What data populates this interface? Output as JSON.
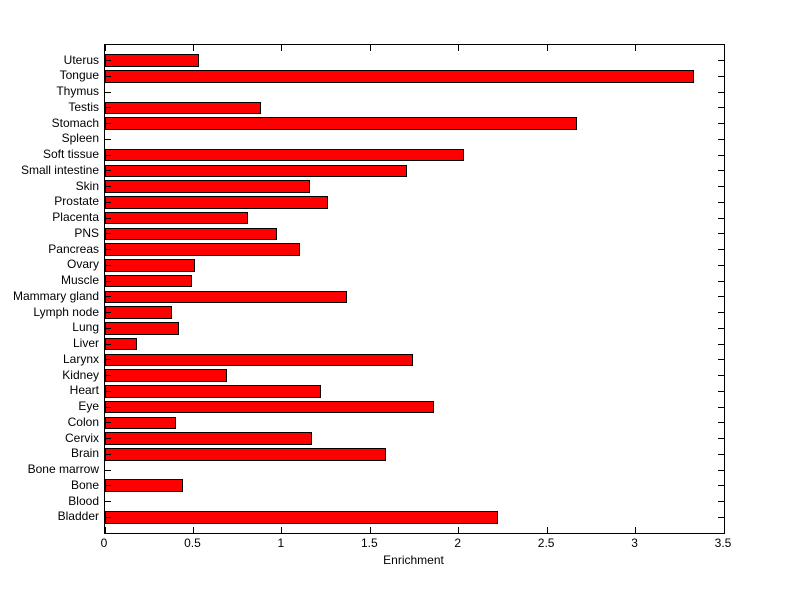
{
  "chart_data": {
    "type": "bar",
    "orientation": "horizontal",
    "title": "",
    "xlabel": "Enrichment",
    "ylabel": "",
    "xlim": [
      0,
      3.5
    ],
    "x_ticks": [
      0,
      0.5,
      1,
      1.5,
      2,
      2.5,
      3,
      3.5
    ],
    "x_tick_labels": [
      "0",
      "0.5",
      "1",
      "1.5",
      "2",
      "2.5",
      "3",
      "3.5"
    ],
    "grid": false,
    "legend": null,
    "category_order": "top-to-bottom",
    "categories": [
      "Uterus",
      "Tongue",
      "Thymus",
      "Testis",
      "Stomach",
      "Spleen",
      "Soft tissue",
      "Small intestine",
      "Skin",
      "Prostate",
      "Placenta",
      "PNS",
      "Pancreas",
      "Ovary",
      "Muscle",
      "Mammary gland",
      "Lymph node",
      "Lung",
      "Liver",
      "Larynx",
      "Kidney",
      "Heart",
      "Eye",
      "Colon",
      "Cervix",
      "Brain",
      "Bone marrow",
      "Bone",
      "Blood",
      "Bladder"
    ],
    "values": [
      0.53,
      3.33,
      0,
      0.88,
      2.67,
      0,
      2.03,
      1.71,
      1.16,
      1.26,
      0.81,
      0.97,
      1.1,
      0.51,
      0.49,
      1.37,
      0.38,
      0.42,
      0.18,
      1.74,
      0.69,
      1.22,
      1.86,
      0.4,
      1.17,
      1.59,
      0,
      0.44,
      0,
      2.22
    ],
    "colors": {
      "bar_fill": "#ff0000",
      "bar_edge": "#000000",
      "axis": "#000000",
      "text": "#000000",
      "background": "#ffffff"
    }
  }
}
